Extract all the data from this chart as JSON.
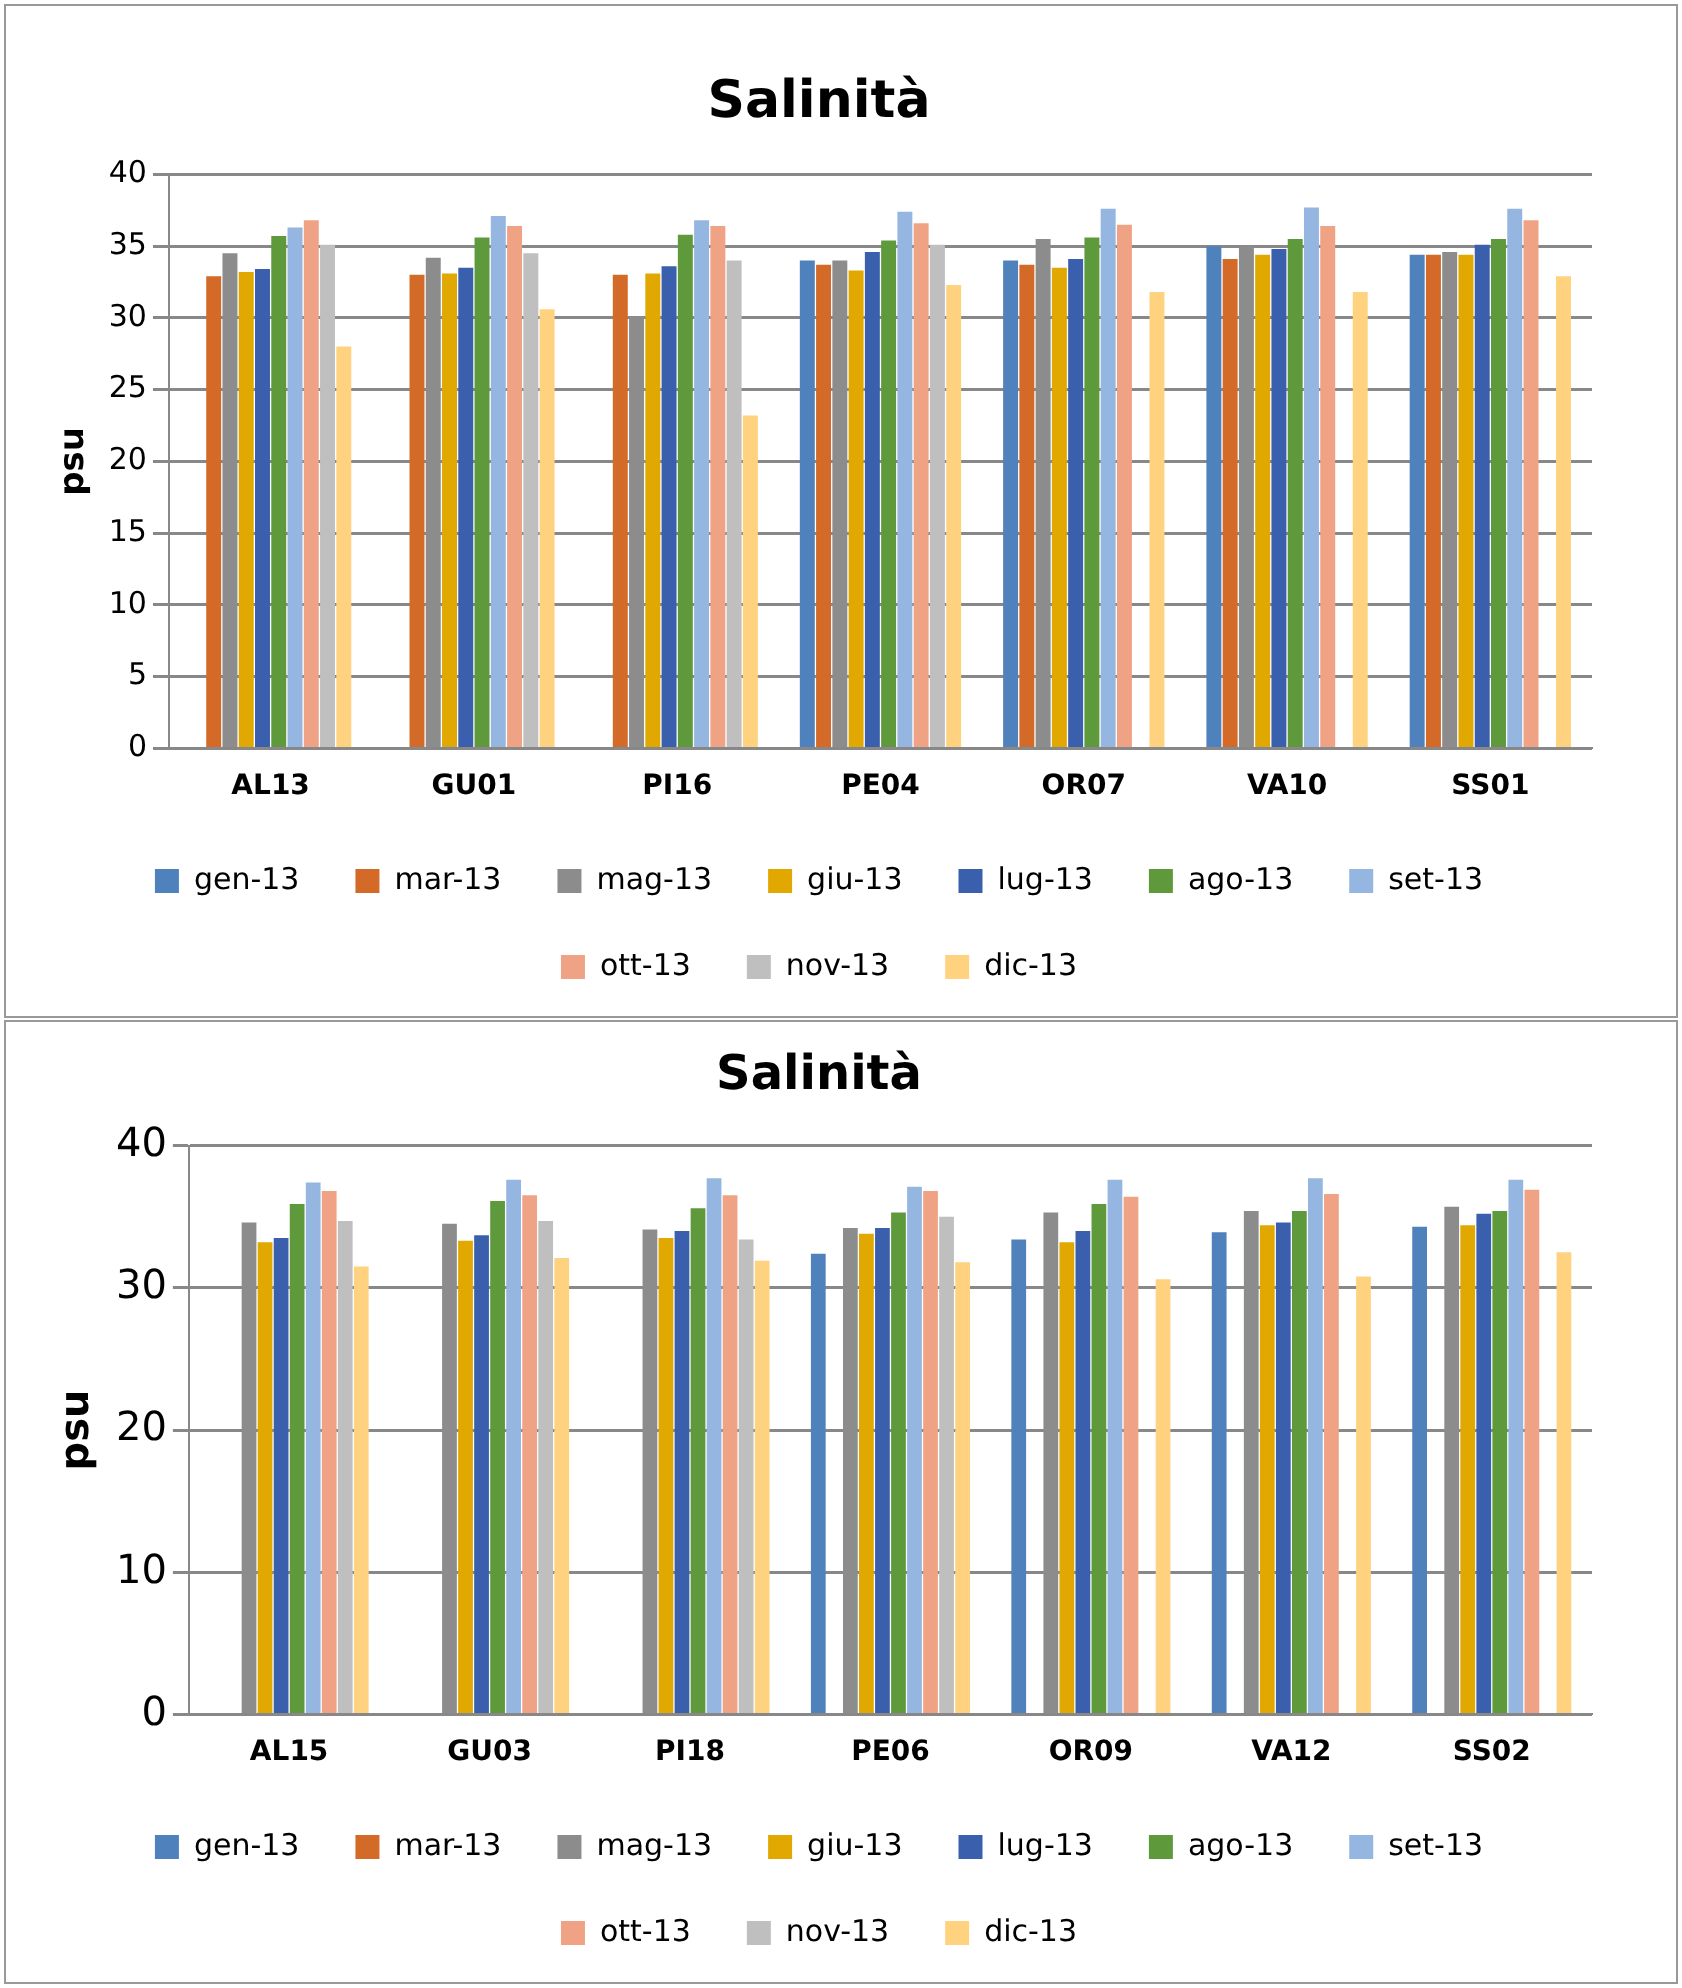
{
  "chart_data": [
    {
      "type": "bar",
      "title": "Salinità",
      "ylabel": "psu",
      "categories": [
        "AL13",
        "GU01",
        "PI16",
        "PE04",
        "OR07",
        "VA10",
        "SS01"
      ],
      "ylim": [
        0,
        40
      ],
      "yticks": [
        0,
        5,
        10,
        15,
        20,
        25,
        30,
        35,
        40
      ],
      "grid": "y",
      "legend": "bottom",
      "series": [
        {
          "name": "gen-13",
          "color": "#4f81bd",
          "values": [
            null,
            null,
            null,
            34.0,
            34.0,
            35.0,
            34.4
          ]
        },
        {
          "name": "mar-13",
          "color": "#d46a28",
          "values": [
            32.9,
            33.0,
            33.0,
            33.7,
            33.7,
            34.1,
            34.4
          ]
        },
        {
          "name": "mag-13",
          "color": "#8c8c8c",
          "values": [
            34.5,
            34.2,
            30.1,
            34.0,
            35.5,
            35.0,
            34.6
          ]
        },
        {
          "name": "giu-13",
          "color": "#e0a800",
          "values": [
            33.2,
            33.1,
            33.1,
            33.3,
            33.5,
            34.4,
            34.4
          ]
        },
        {
          "name": "lug-13",
          "color": "#3a60ad",
          "values": [
            33.4,
            33.5,
            33.6,
            34.6,
            34.1,
            34.8,
            35.1
          ]
        },
        {
          "name": "ago-13",
          "color": "#5e9a3c",
          "values": [
            35.7,
            35.6,
            35.8,
            35.4,
            35.6,
            35.5,
            35.5
          ]
        },
        {
          "name": "set-13",
          "color": "#95b6e0",
          "values": [
            36.3,
            37.1,
            36.8,
            37.4,
            37.6,
            37.7,
            37.6
          ]
        },
        {
          "name": "ott-13",
          "color": "#f0a384",
          "values": [
            36.8,
            36.4,
            36.4,
            36.6,
            36.5,
            36.4,
            36.8
          ]
        },
        {
          "name": "nov-13",
          "color": "#bfbfbf",
          "values": [
            35.1,
            34.5,
            34.0,
            35.1,
            null,
            null,
            null
          ]
        },
        {
          "name": "dic-13",
          "color": "#ffd280",
          "values": [
            28.0,
            30.6,
            23.2,
            32.3,
            31.8,
            31.8,
            32.9
          ]
        }
      ]
    },
    {
      "type": "bar",
      "title": "Salinità",
      "ylabel": "psu",
      "categories": [
        "AL15",
        "GU03",
        "PI18",
        "PE06",
        "OR09",
        "VA12",
        "SS02"
      ],
      "ylim": [
        0,
        40
      ],
      "yticks": [
        0,
        10,
        20,
        30,
        40
      ],
      "grid": "y",
      "legend": "bottom",
      "series": [
        {
          "name": "gen-13",
          "color": "#4f81bd",
          "values": [
            null,
            null,
            null,
            32.4,
            33.4,
            33.9,
            34.3
          ]
        },
        {
          "name": "mar-13",
          "color": "#d46a28",
          "values": [
            null,
            null,
            null,
            null,
            null,
            null,
            null
          ]
        },
        {
          "name": "mag-13",
          "color": "#8c8c8c",
          "values": [
            34.6,
            34.5,
            34.1,
            34.2,
            35.3,
            35.4,
            35.7
          ]
        },
        {
          "name": "giu-13",
          "color": "#e0a800",
          "values": [
            33.2,
            33.3,
            33.5,
            33.8,
            33.2,
            34.4,
            34.4
          ]
        },
        {
          "name": "lug-13",
          "color": "#3a60ad",
          "values": [
            33.5,
            33.7,
            34.0,
            34.2,
            34.0,
            34.6,
            35.2
          ]
        },
        {
          "name": "ago-13",
          "color": "#5e9a3c",
          "values": [
            35.9,
            36.1,
            35.6,
            35.3,
            35.9,
            35.4,
            35.4
          ]
        },
        {
          "name": "set-13",
          "color": "#95b6e0",
          "values": [
            37.4,
            37.6,
            37.7,
            37.1,
            37.6,
            37.7,
            37.6
          ]
        },
        {
          "name": "ott-13",
          "color": "#f0a384",
          "values": [
            36.8,
            36.5,
            36.5,
            36.8,
            36.4,
            36.6,
            36.9
          ]
        },
        {
          "name": "nov-13",
          "color": "#bfbfbf",
          "values": [
            34.7,
            34.7,
            33.4,
            35.0,
            null,
            null,
            null
          ]
        },
        {
          "name": "dic-13",
          "color": "#ffd280",
          "values": [
            31.5,
            32.1,
            31.9,
            31.8,
            30.6,
            30.8,
            32.5
          ]
        }
      ]
    }
  ]
}
